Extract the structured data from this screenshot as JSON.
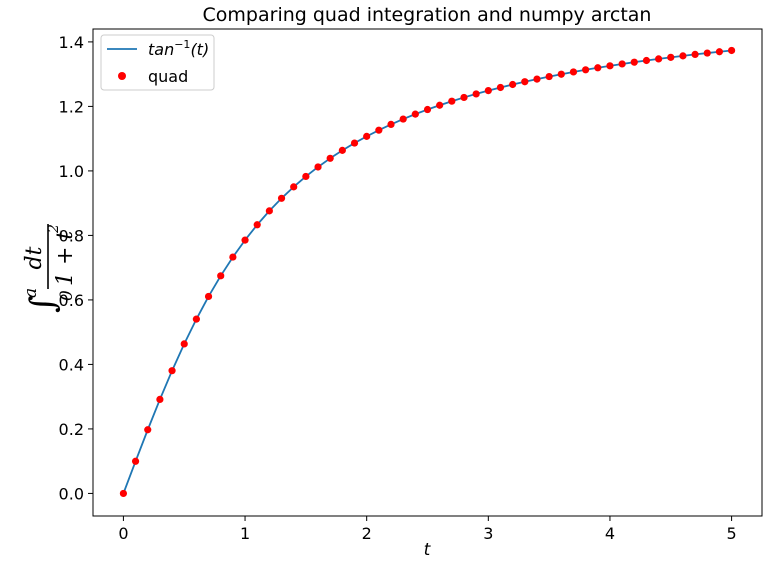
{
  "chart_data": {
    "type": "line",
    "title": "Comparing quad integration and numpy arctan",
    "xlabel": "t",
    "ylabel": {
      "integral_sign": "∫",
      "lower_limit": "0",
      "upper_limit": "a",
      "numerator": "dt",
      "denominator_base": "1 + t",
      "denominator_exponent": "2"
    },
    "xlim": [
      -0.25,
      5.25
    ],
    "ylim": [
      -0.07,
      1.44
    ],
    "xticks": [
      0,
      1,
      2,
      3,
      4,
      5
    ],
    "xtick_labels": [
      "0",
      "1",
      "2",
      "3",
      "4",
      "5"
    ],
    "yticks": [
      0.0,
      0.2,
      0.4,
      0.6,
      0.8,
      1.0,
      1.2,
      1.4
    ],
    "ytick_labels": [
      "0.0",
      "0.2",
      "0.4",
      "0.6",
      "0.8",
      "1.0",
      "1.2",
      "1.4"
    ],
    "grid": false,
    "legend_position": "top-left",
    "series": [
      {
        "name": "tan⁻¹(t)",
        "legend": {
          "base": "tan",
          "superscript": "−1",
          "suffix": "(t)"
        },
        "kind": "line",
        "color": "#1f77b4",
        "x": [
          0,
          0.1,
          0.2,
          0.3,
          0.4,
          0.5,
          0.6,
          0.7,
          0.8,
          0.9,
          1.0,
          1.1,
          1.2,
          1.3,
          1.4,
          1.5,
          1.6,
          1.7,
          1.8,
          1.9,
          2.0,
          2.1,
          2.2,
          2.3,
          2.4,
          2.5,
          2.6,
          2.7,
          2.8,
          2.9,
          3.0,
          3.1,
          3.2,
          3.3,
          3.4,
          3.5,
          3.6,
          3.7,
          3.8,
          3.9,
          4.0,
          4.1,
          4.2,
          4.3,
          4.4,
          4.5,
          4.6,
          4.7,
          4.8,
          4.9,
          5.0
        ],
        "y": [
          0.0,
          0.0997,
          0.1974,
          0.2915,
          0.3805,
          0.4636,
          0.5404,
          0.6107,
          0.6747,
          0.7328,
          0.7854,
          0.833,
          0.8761,
          0.9151,
          0.9505,
          0.9828,
          1.0122,
          1.0391,
          1.0637,
          1.0863,
          1.1071,
          1.1263,
          1.1442,
          1.1607,
          1.176,
          1.1903,
          1.2036,
          1.2161,
          1.2278,
          1.2387,
          1.249,
          1.2587,
          1.2679,
          1.2765,
          1.2847,
          1.2925,
          1.2998,
          1.3068,
          1.3135,
          1.3198,
          1.3258,
          1.3316,
          1.3371,
          1.3423,
          1.3473,
          1.3521,
          1.3567,
          1.3612,
          1.3654,
          1.3695,
          1.3734
        ]
      },
      {
        "name": "quad",
        "legend": {
          "base": "quad"
        },
        "kind": "scatter",
        "color": "#ff0000",
        "x": [
          0,
          0.1,
          0.2,
          0.3,
          0.4,
          0.5,
          0.6,
          0.7,
          0.8,
          0.9,
          1.0,
          1.1,
          1.2,
          1.3,
          1.4,
          1.5,
          1.6,
          1.7,
          1.8,
          1.9,
          2.0,
          2.1,
          2.2,
          2.3,
          2.4,
          2.5,
          2.6,
          2.7,
          2.8,
          2.9,
          3.0,
          3.1,
          3.2,
          3.3,
          3.4,
          3.5,
          3.6,
          3.7,
          3.8,
          3.9,
          4.0,
          4.1,
          4.2,
          4.3,
          4.4,
          4.5,
          4.6,
          4.7,
          4.8,
          4.9,
          5.0
        ],
        "y": [
          0.0,
          0.0997,
          0.1974,
          0.2915,
          0.3805,
          0.4636,
          0.5404,
          0.6107,
          0.6747,
          0.7328,
          0.7854,
          0.833,
          0.8761,
          0.9151,
          0.9505,
          0.9828,
          1.0122,
          1.0391,
          1.0637,
          1.0863,
          1.1071,
          1.1263,
          1.1442,
          1.1607,
          1.176,
          1.1903,
          1.2036,
          1.2161,
          1.2278,
          1.2387,
          1.249,
          1.2587,
          1.2679,
          1.2765,
          1.2847,
          1.2925,
          1.2998,
          1.3068,
          1.3135,
          1.3198,
          1.3258,
          1.3316,
          1.3371,
          1.3423,
          1.3473,
          1.3521,
          1.3567,
          1.3612,
          1.3654,
          1.3695,
          1.3734
        ]
      }
    ]
  }
}
